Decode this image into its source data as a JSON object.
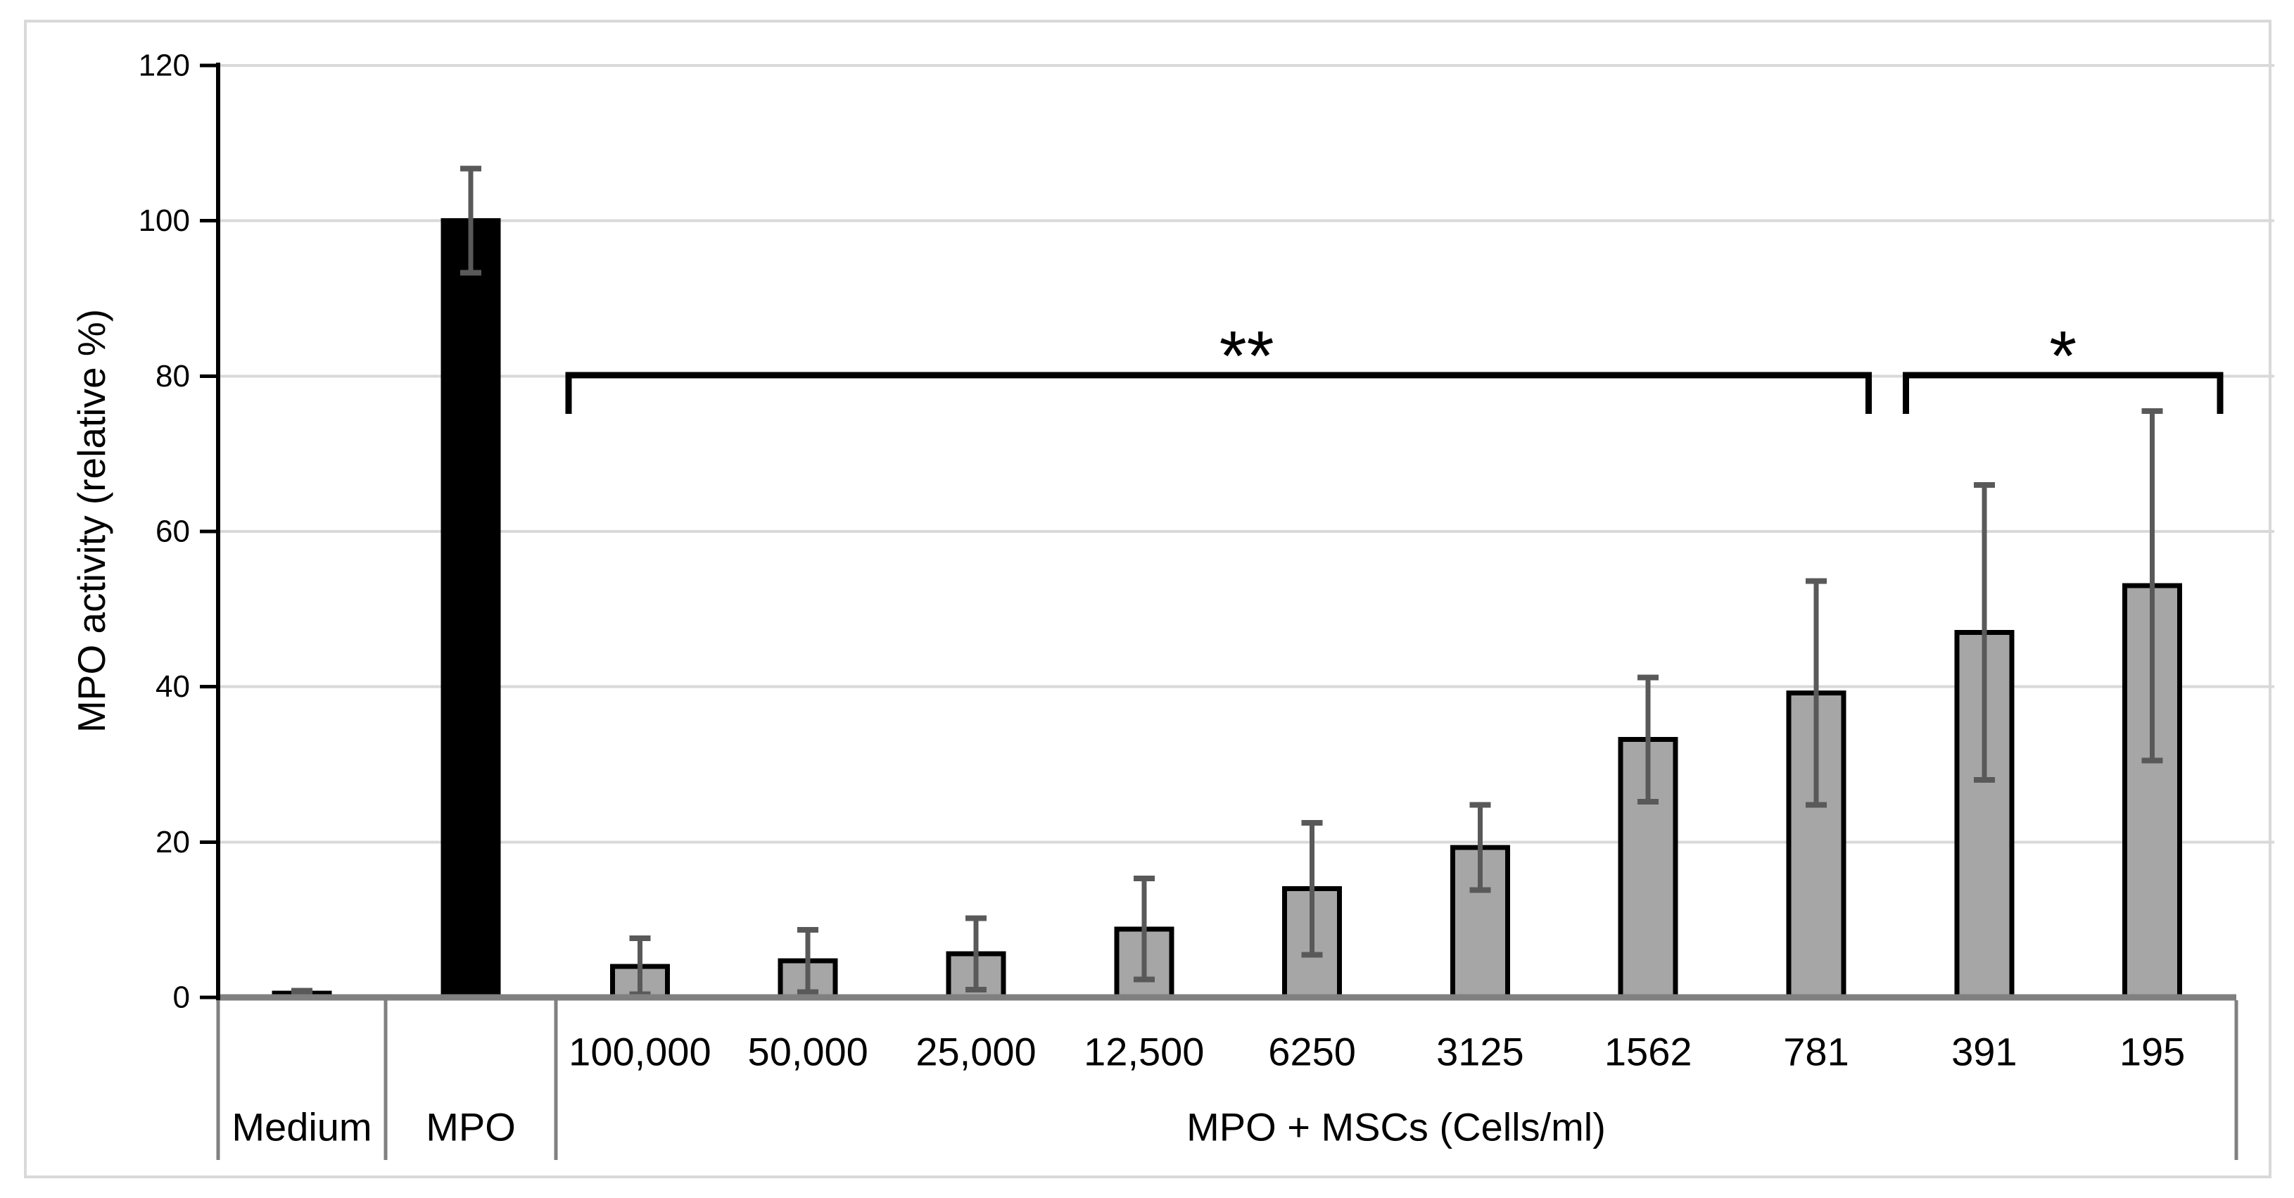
{
  "chart_data": {
    "type": "bar",
    "title": "",
    "xlabel": "",
    "ylabel": "MPO activity (relative %)",
    "ylim": [
      0,
      120
    ],
    "yticks": [
      0,
      20,
      40,
      60,
      80,
      100,
      120
    ],
    "grid": "horizontal",
    "legend": false,
    "categories": [
      "Medium",
      "MPO",
      "100,000",
      "50,000",
      "25,000",
      "12,500",
      "6250",
      "3125",
      "1562",
      "781",
      "391",
      "195"
    ],
    "x_group": {
      "label": "MPO + MSCs (Cells/ml)",
      "members": [
        "100,000",
        "50,000",
        "25,000",
        "12,500",
        "6250",
        "3125",
        "1562",
        "781",
        "391",
        "195"
      ]
    },
    "series": [
      {
        "name": "MPO activity (relative %)",
        "values": [
          0.55,
          100,
          4.0,
          4.7,
          5.6,
          8.8,
          14.0,
          19.3,
          33.2,
          39.2,
          47.0,
          53.0
        ],
        "error_plus_minus": [
          0.3,
          6.7,
          3.6,
          4.0,
          4.6,
          6.5,
          8.5,
          5.5,
          8.0,
          14.4,
          19.0,
          22.5
        ]
      }
    ],
    "bar_colors": [
      "#a6a6a6",
      "#000000",
      "#a6a6a6",
      "#a6a6a6",
      "#a6a6a6",
      "#a6a6a6",
      "#a6a6a6",
      "#a6a6a6",
      "#a6a6a6",
      "#a6a6a6",
      "#a6a6a6",
      "#a6a6a6"
    ],
    "annotations": [
      {
        "label": "**",
        "from": "100,000",
        "to": "781"
      },
      {
        "label": "*",
        "from": "391",
        "to": "195"
      }
    ]
  },
  "colors": {
    "bar_gray": "#a6a6a6",
    "bar_outline": "#000000",
    "error_bar": "#595959",
    "axis_line": "#000000",
    "baseline": "#808080",
    "separator": "#808080",
    "gridline": "#d9d9d9",
    "figure_border": "#d9d9d9",
    "text": "#000000",
    "background": "#ffffff"
  }
}
